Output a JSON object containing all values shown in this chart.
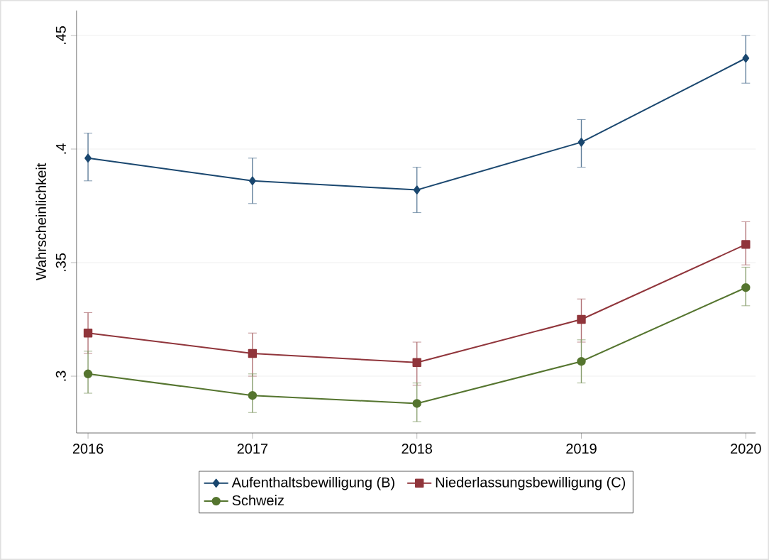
{
  "chart_data": {
    "type": "line",
    "ylabel": "Wahrscheinlichkeit",
    "x": [
      2016,
      2017,
      2018,
      2019,
      2020
    ],
    "xlim": [
      2015.93,
      2020.06
    ],
    "xticks": [
      2016,
      2017,
      2018,
      2019,
      2020
    ],
    "ylim": [
      0.275,
      0.461
    ],
    "yticks": [
      {
        "value": 0.3,
        "label": ".3"
      },
      {
        "value": 0.35,
        "label": ".35"
      },
      {
        "value": 0.4,
        "label": ".4"
      },
      {
        "value": 0.45,
        "label": ".45"
      }
    ],
    "grid": "y",
    "legend": "bottom",
    "line_style": "solid",
    "series": [
      {
        "name": "Aufenthaltsbewilligung (B)",
        "color": "#1a476f",
        "marker": "diamond",
        "values": [
          0.396,
          0.386,
          0.382,
          0.403,
          0.44
        ],
        "errors": [
          [
            0.386,
            0.407
          ],
          [
            0.376,
            0.396
          ],
          [
            0.372,
            0.392
          ],
          [
            0.392,
            0.413
          ],
          [
            0.429,
            0.45
          ]
        ]
      },
      {
        "name": "Niederlassungsbewilligung (C)",
        "color": "#90353b",
        "marker": "square",
        "values": [
          0.319,
          0.31,
          0.306,
          0.325,
          0.358
        ],
        "errors": [
          [
            0.31,
            0.328
          ],
          [
            0.3,
            0.319
          ],
          [
            0.296,
            0.315
          ],
          [
            0.315,
            0.334
          ],
          [
            0.349,
            0.368
          ]
        ]
      },
      {
        "name": "Schweiz",
        "color": "#55752f",
        "marker": "circle",
        "values": [
          0.301,
          0.2915,
          0.288,
          0.3065,
          0.339
        ],
        "errors": [
          [
            0.2925,
            0.311
          ],
          [
            0.284,
            0.301
          ],
          [
            0.28,
            0.297
          ],
          [
            0.297,
            0.316
          ],
          [
            0.331,
            0.348
          ]
        ]
      }
    ]
  }
}
